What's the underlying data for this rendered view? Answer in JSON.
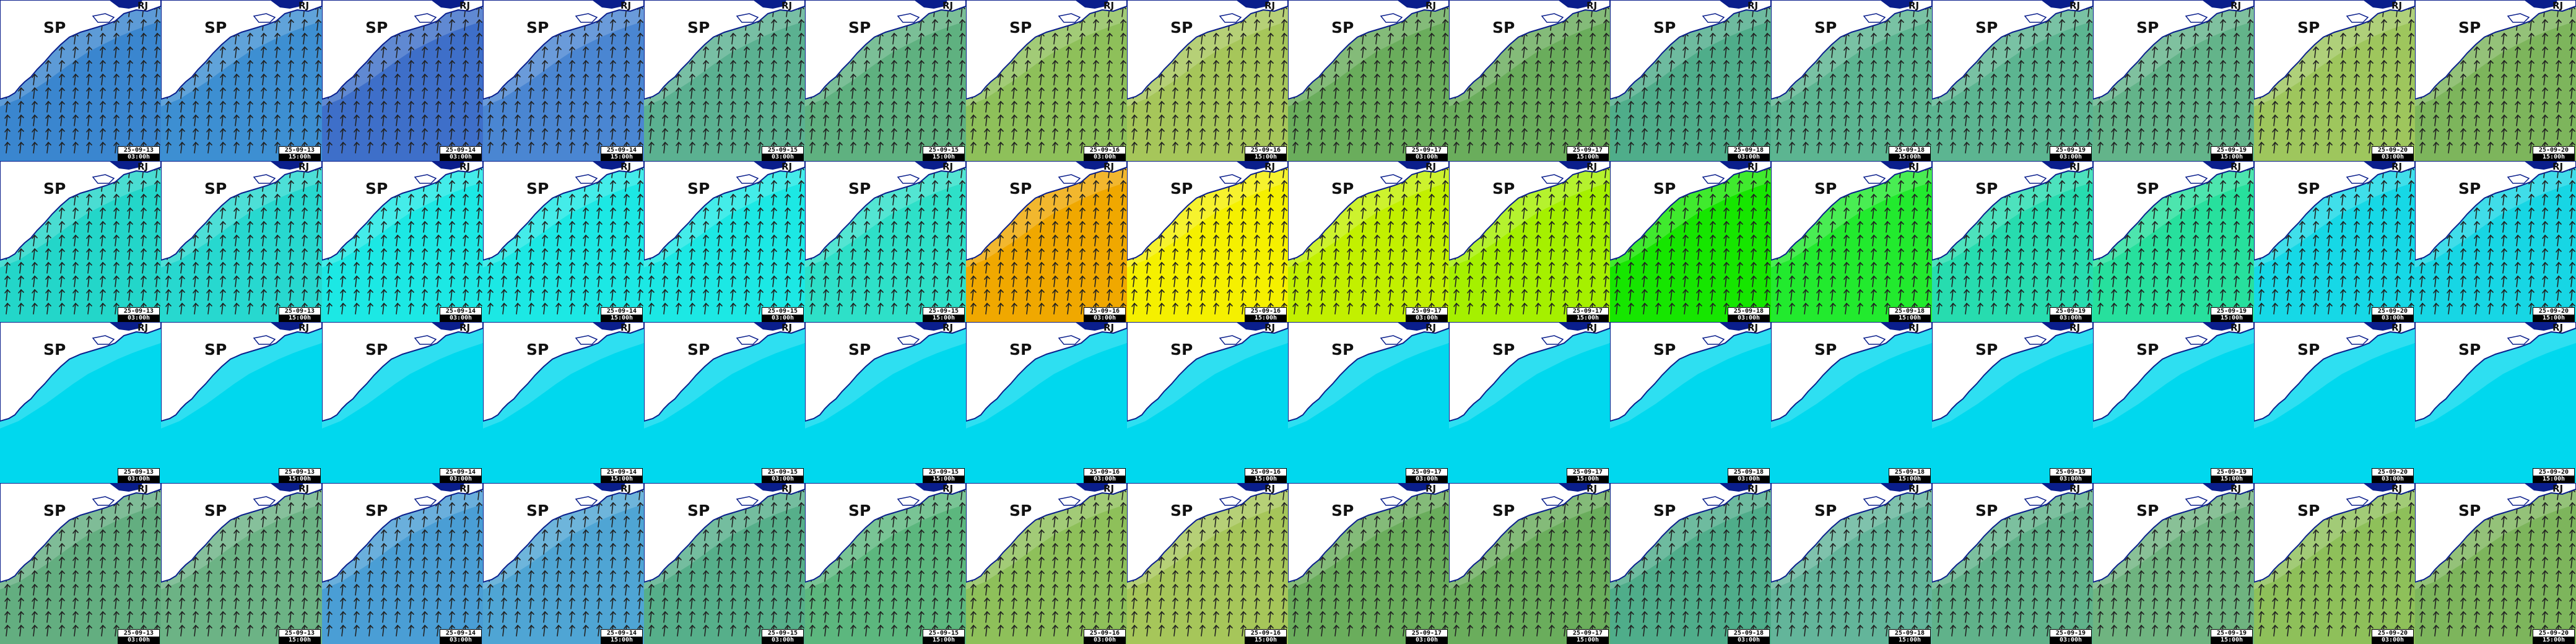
{
  "rows": [
    {
      "id": "row-1",
      "colors": [
        "#3a86cf",
        "#3d8fd2",
        "#3e6fc9",
        "#4a86d2",
        "#5bb191",
        "#5fb180",
        "#8ec05a",
        "#a6c65a",
        "#6aad5c",
        "#6aad5c",
        "#4fad8a",
        "#5cb591",
        "#5cb591",
        "#63b48a",
        "#9ec65d",
        "#7db55c"
      ],
      "arrows": "#222222"
    },
    {
      "id": "row-2",
      "colors": [
        "#23d6c9",
        "#27d8cf",
        "#1ce8e4",
        "#1ce8e4",
        "#1ce8e4",
        "#2ee0c8",
        "#f0a800",
        "#f5f000",
        "#c2f000",
        "#a5f000",
        "#16e600",
        "#22ea2e",
        "#27dcaf",
        "#27e09d",
        "#16d8e6",
        "#17d6e4"
      ],
      "arrows": "#222222"
    },
    {
      "id": "row-3",
      "colors": [
        "#00d8ee",
        "#00d8ee",
        "#00d8ee",
        "#00d8ee",
        "#00d8ee",
        "#00d8ee",
        "#00d8ee",
        "#00d8ee",
        "#00d8ee",
        "#00d8ee",
        "#00d8ee",
        "#00d8ee",
        "#00d8ee",
        "#00d8ee",
        "#00d8ee",
        "#00d8ee"
      ],
      "arrows": ""
    },
    {
      "id": "row-4",
      "colors": [
        "#63ae80",
        "#6cb385",
        "#4a9ed5",
        "#4fa5d4",
        "#56af8a",
        "#5cb77e",
        "#8ec05a",
        "#a6c65a",
        "#6aad5c",
        "#6aad5c",
        "#4fad8a",
        "#63b59a",
        "#60b28a",
        "#6fb480",
        "#8ec05a",
        "#7db55c"
      ],
      "arrows": "#222222"
    }
  ],
  "labels": {
    "state": "SP",
    "neighbor": "RJ"
  },
  "stamps": [
    {
      "date": "25-09-13",
      "hour": "03:00h"
    },
    {
      "date": "25-09-13",
      "hour": "15:00h"
    },
    {
      "date": "25-09-14",
      "hour": "03:00h"
    },
    {
      "date": "25-09-14",
      "hour": "15:00h"
    },
    {
      "date": "25-09-15",
      "hour": "03:00h"
    },
    {
      "date": "25-09-15",
      "hour": "15:00h"
    },
    {
      "date": "25-09-16",
      "hour": "03:00h"
    },
    {
      "date": "25-09-16",
      "hour": "15:00h"
    },
    {
      "date": "25-09-17",
      "hour": "03:00h"
    },
    {
      "date": "25-09-17",
      "hour": "15:00h"
    },
    {
      "date": "25-09-18",
      "hour": "03:00h"
    },
    {
      "date": "25-09-18",
      "hour": "15:00h"
    },
    {
      "date": "25-09-19",
      "hour": "03:00h"
    },
    {
      "date": "25-09-19",
      "hour": "15:00h"
    },
    {
      "date": "25-09-20",
      "hour": "03:00h"
    },
    {
      "date": "25-09-20",
      "hour": "15:00h"
    }
  ],
  "land_color": "#ffffff",
  "coast_color": "#0a1e8c"
}
